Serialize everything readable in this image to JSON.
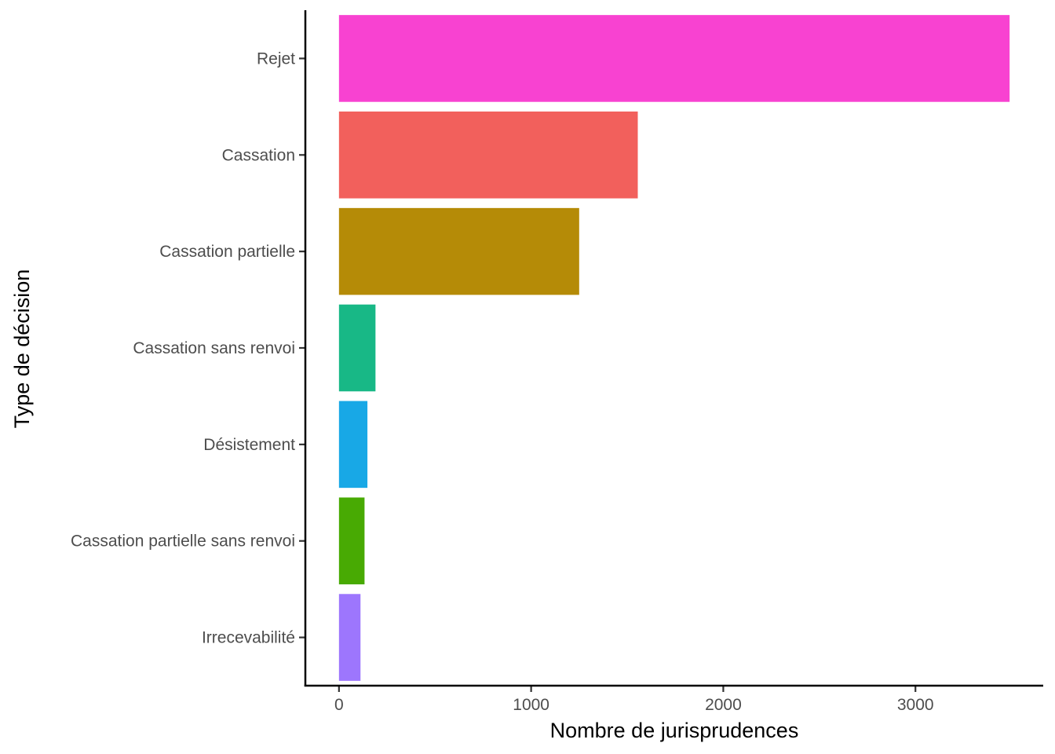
{
  "chart_data": {
    "type": "bar",
    "orientation": "horizontal",
    "categories": [
      "Rejet",
      "Cassation",
      "Cassation partielle",
      "Cassation sans renvoi",
      "Désistement",
      "Cassation partielle sans renvoi",
      "Irrecevabilité"
    ],
    "values": [
      3490,
      1555,
      1250,
      190,
      148,
      133,
      112
    ],
    "colors": [
      "#F842D1",
      "#F2605C",
      "#B58B07",
      "#18B886",
      "#18A8E6",
      "#48AA03",
      "#9D76FD"
    ],
    "xlabel": "Nombre de jurisprudences",
    "ylabel": "Type de décision",
    "xlim": [
      -175,
      3665
    ],
    "xticks": [
      0,
      1000,
      2000,
      3000
    ],
    "xtick_labels": [
      "0",
      "1000",
      "2000",
      "3000"
    ],
    "grid": false,
    "legend": "none"
  }
}
